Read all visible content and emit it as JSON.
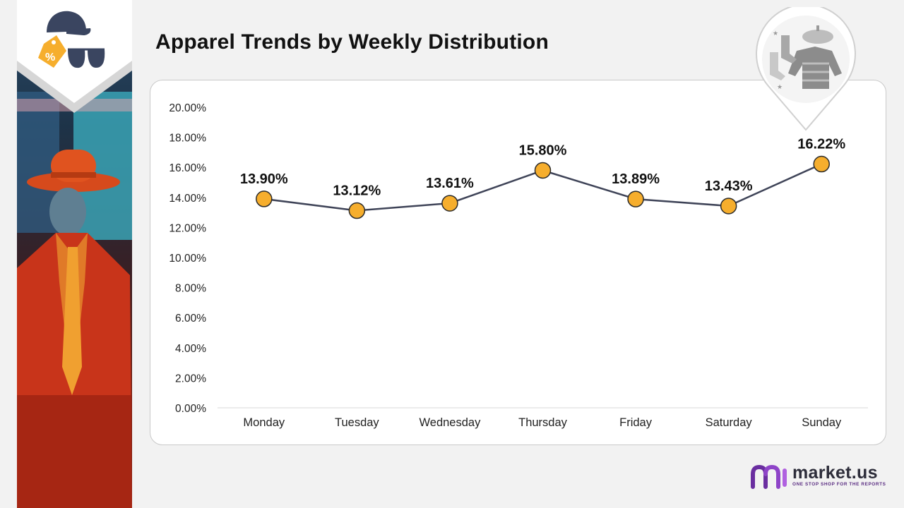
{
  "page": {
    "title": "Apparel Trends by Weekly Distribution"
  },
  "brand": {
    "name": "market.us",
    "tagline": "ONE STOP SHOP FOR THE REPORTS"
  },
  "icons": {
    "corner_badge": "cap-tag-sunglasses-icon",
    "pin_badge": "socks-sweater-beret-icon",
    "brand_logo": "market-us-logo-icon"
  },
  "colors": {
    "line": "#3f4458",
    "marker_fill": "#f6ae2d",
    "marker_stroke": "#2b2b2b",
    "brand_purple": "#6a2ea0"
  },
  "chart_data": {
    "type": "line",
    "title": "",
    "xlabel": "",
    "ylabel": "",
    "categories": [
      "Monday",
      "Tuesday",
      "Wednesday",
      "Thursday",
      "Friday",
      "Saturday",
      "Sunday"
    ],
    "values": [
      13.9,
      13.12,
      13.61,
      15.8,
      13.89,
      13.43,
      16.22
    ],
    "data_labels": [
      "13.90%",
      "13.12%",
      "13.61%",
      "15.80%",
      "13.89%",
      "13.43%",
      "16.22%"
    ],
    "yticks": [
      "0.00%",
      "2.00%",
      "4.00%",
      "6.00%",
      "8.00%",
      "10.00%",
      "12.00%",
      "14.00%",
      "16.00%",
      "18.00%",
      "20.00%"
    ],
    "ylim": [
      0,
      20
    ],
    "grid": false,
    "legend": "none"
  }
}
